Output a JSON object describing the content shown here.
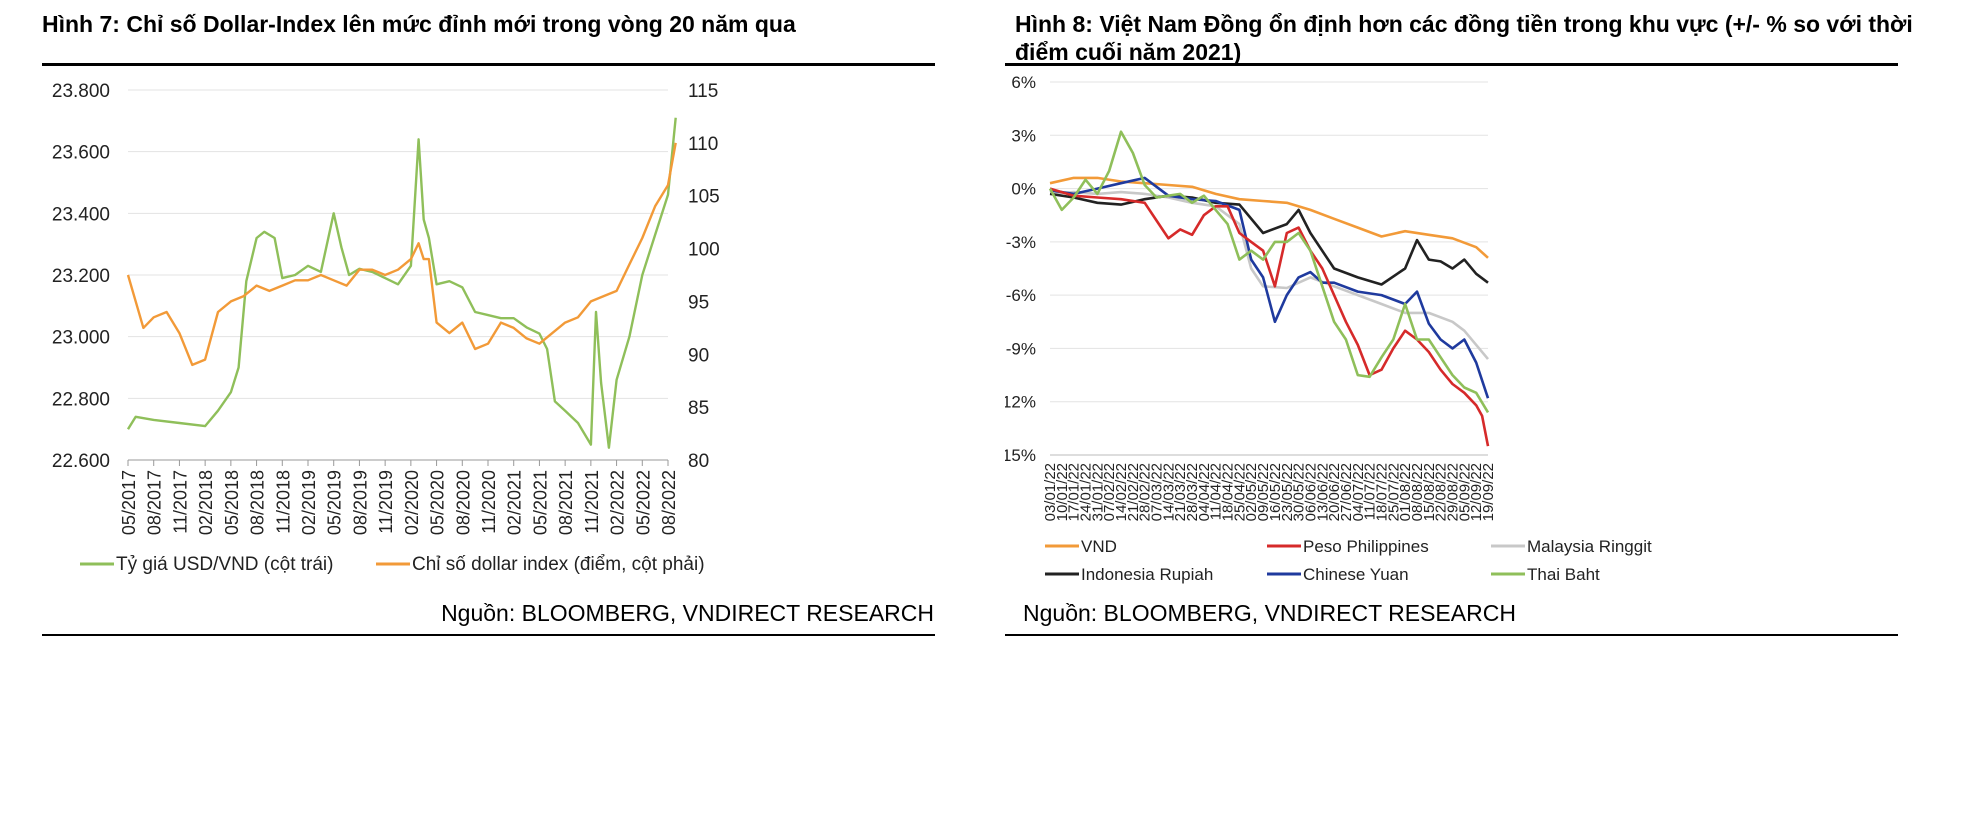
{
  "figure1": {
    "title": "Hình 7: Chỉ số Dollar-Index lên mức đỉnh mới trong vòng 20 năm qua",
    "source": "Nguồn: BLOOMBERG, VNDIRECT RESEARCH",
    "chart_data": {
      "type": "line",
      "title": "Hình 7: Chỉ số Dollar-Index lên mức đỉnh mới trong vòng 20 năm qua",
      "x_tick_labels": [
        "05/2017",
        "08/2017",
        "11/2017",
        "02/2018",
        "05/2018",
        "08/2018",
        "11/2018",
        "02/2019",
        "05/2019",
        "08/2019",
        "11/2019",
        "02/2020",
        "05/2020",
        "08/2020",
        "11/2020",
        "02/2021",
        "05/2021",
        "08/2021",
        "11/2021",
        "02/2022",
        "05/2022",
        "08/2022"
      ],
      "left_axis": {
        "ylim": [
          22600,
          23800
        ],
        "ticks": [
          "23.800",
          "23.600",
          "23.400",
          "23.200",
          "23.000",
          "22.800",
          "22.600"
        ]
      },
      "right_axis": {
        "ylim": [
          80,
          115
        ],
        "ticks": [
          "115",
          "110",
          "105",
          "100",
          "95",
          "90",
          "85",
          "80"
        ]
      },
      "series": [
        {
          "name": "Tỷ giá USD/VND (cột trái)",
          "axis": "left",
          "color": "#8fbf5a",
          "x": [
            0,
            0.3,
            1,
            2,
            3,
            3.5,
            4,
            4.3,
            4.6,
            5,
            5.3,
            5.7,
            6,
            6.5,
            7,
            7.5,
            8,
            8.3,
            8.6,
            9,
            9.5,
            10,
            10.5,
            11,
            11.3,
            11.5,
            11.7,
            12,
            12.5,
            13,
            13.5,
            14,
            14.5,
            15,
            15.5,
            16,
            16.3,
            16.6,
            17,
            17.5,
            18,
            18.2,
            18.4,
            18.7,
            19,
            19.5,
            20,
            20.5,
            21,
            21.3
          ],
          "values": [
            22700,
            22740,
            22730,
            22720,
            22710,
            22760,
            22820,
            22900,
            23180,
            23320,
            23340,
            23320,
            23190,
            23200,
            23230,
            23210,
            23400,
            23290,
            23200,
            23220,
            23210,
            23190,
            23170,
            23230,
            23640,
            23380,
            23320,
            23170,
            23180,
            23160,
            23080,
            23070,
            23060,
            23060,
            23030,
            23010,
            22960,
            22790,
            22760,
            22720,
            22650,
            23080,
            22850,
            22640,
            22860,
            23000,
            23200,
            23330,
            23460,
            23710
          ]
        },
        {
          "name": "Chỉ số dollar index (điểm, cột phải)",
          "axis": "right",
          "color": "#f29a38",
          "x": [
            0,
            0.3,
            0.6,
            1,
            1.5,
            2,
            2.5,
            3,
            3.5,
            4,
            4.5,
            5,
            5.5,
            6,
            6.5,
            7,
            7.5,
            8,
            8.5,
            9,
            9.5,
            10,
            10.5,
            11,
            11.3,
            11.5,
            11.7,
            12,
            12.5,
            13,
            13.5,
            14,
            14.5,
            15,
            15.5,
            16,
            16.5,
            17,
            17.5,
            18,
            18.5,
            19,
            19.5,
            20,
            20.5,
            21,
            21.3
          ],
          "values": [
            97.5,
            95,
            92.5,
            93.5,
            94,
            92,
            89,
            89.5,
            94,
            95,
            95.5,
            96.5,
            96,
            96.5,
            97,
            97,
            97.5,
            97,
            96.5,
            98,
            98,
            97.5,
            98,
            99,
            100.5,
            99,
            99,
            93,
            92,
            93,
            90.5,
            91,
            93,
            92.5,
            91.5,
            91,
            92,
            93,
            93.5,
            95,
            95.5,
            96,
            98.5,
            101,
            104,
            106,
            110
          ]
        }
      ],
      "legend": [
        "Tỷ giá USD/VND (cột trái)",
        "Chỉ số dollar index (điểm, cột phải)"
      ],
      "legend_position": "bottom"
    }
  },
  "figure2": {
    "title": "Hình 8: Việt Nam Đồng ổn định hơn các đồng tiền trong khu vực (+/- % so với thời điểm cuối năm 2021)",
    "source": "Nguồn: BLOOMBERG, VNDIRECT RESEARCH",
    "chart_data": {
      "type": "line",
      "title": "Hình 8: Việt Nam Đồng ổn định hơn các đồng tiền trong khu vực (+/- % so với thời điểm cuối năm 2021)",
      "x_tick_labels": [
        "03/01/22",
        "10/01/22",
        "17/01/22",
        "24/01/22",
        "31/01/22",
        "07/02/22",
        "14/02/22",
        "21/02/22",
        "28/02/22",
        "07/03/22",
        "14/03/22",
        "21/03/22",
        "28/03/22",
        "04/04/22",
        "11/04/22",
        "18/04/22",
        "25/04/22",
        "02/05/22",
        "09/05/22",
        "16/05/22",
        "23/05/22",
        "30/05/22",
        "06/06/22",
        "13/06/22",
        "20/06/22",
        "27/06/22",
        "04/07/22",
        "11/07/22",
        "18/07/22",
        "25/07/22",
        "01/08/22",
        "08/08/22",
        "15/08/22",
        "22/08/22",
        "29/08/22",
        "05/09/22",
        "12/09/22",
        "19/09/22"
      ],
      "ylim": [
        -15,
        6
      ],
      "y_tick_labels": [
        "6%",
        "3%",
        "0%",
        "-3%",
        "-6%",
        "-9%",
        "-12%",
        "-15%"
      ],
      "series": [
        {
          "name": "VND",
          "color": "#f29a38",
          "x": [
            0,
            2,
            4,
            6,
            8,
            10,
            12,
            14,
            16,
            18,
            20,
            22,
            24,
            26,
            28,
            30,
            32,
            34,
            36,
            37
          ],
          "values": [
            0.3,
            0.6,
            0.6,
            0.4,
            0.3,
            0.2,
            0.1,
            -0.3,
            -0.6,
            -0.7,
            -0.8,
            -1.2,
            -1.7,
            -2.2,
            -2.7,
            -2.4,
            -2.6,
            -2.8,
            -3.3,
            -3.9
          ]
        },
        {
          "name": "Peso Philippines",
          "color": "#d62a2a",
          "x": [
            0,
            2,
            4,
            6,
            8,
            9,
            10,
            11,
            12,
            13,
            14,
            15,
            16,
            17,
            18,
            19,
            20,
            21,
            22,
            23,
            24,
            25,
            26,
            27,
            28,
            29,
            30,
            31,
            32,
            33,
            34,
            35,
            36,
            36.5,
            37
          ],
          "values": [
            0,
            -0.4,
            -0.5,
            -0.6,
            -0.8,
            -1.8,
            -2.8,
            -2.3,
            -2.6,
            -1.5,
            -1.0,
            -1.0,
            -2.5,
            -3.0,
            -3.5,
            -5.5,
            -2.5,
            -2.2,
            -3.5,
            -4.5,
            -6.0,
            -7.5,
            -8.8,
            -10.5,
            -10.2,
            -9.0,
            -8.0,
            -8.5,
            -9.2,
            -10.2,
            -11.0,
            -11.5,
            -12.2,
            -12.8,
            -14.5
          ]
        },
        {
          "name": "Malaysia Ringgit",
          "color": "#c8c8c8",
          "x": [
            0,
            2,
            4,
            6,
            8,
            10,
            12,
            14,
            16,
            17,
            18,
            20,
            22,
            24,
            26,
            28,
            30,
            32,
            34,
            35,
            36,
            37
          ],
          "values": [
            -0.3,
            -0.2,
            -0.3,
            -0.2,
            -0.3,
            -0.5,
            -0.8,
            -1.0,
            -2.0,
            -4.5,
            -5.5,
            -5.6,
            -5.0,
            -5.5,
            -6.0,
            -6.5,
            -7.0,
            -7.0,
            -7.5,
            -8.0,
            -8.8,
            -9.6
          ]
        },
        {
          "name": "Indonesia Rupiah",
          "color": "#222222",
          "x": [
            0,
            2,
            4,
            6,
            8,
            10,
            12,
            14,
            16,
            18,
            20,
            21,
            22,
            24,
            26,
            28,
            30,
            31,
            32,
            33,
            34,
            35,
            36,
            37
          ],
          "values": [
            -0.3,
            -0.5,
            -0.8,
            -0.9,
            -0.6,
            -0.4,
            -0.5,
            -0.8,
            -0.9,
            -2.5,
            -2.0,
            -1.2,
            -2.5,
            -4.5,
            -5.0,
            -5.4,
            -4.5,
            -2.9,
            -4.0,
            -4.1,
            -4.5,
            -4.0,
            -4.8,
            -5.3
          ]
        },
        {
          "name": "Chinese Yuan",
          "color": "#1f3a9e",
          "x": [
            0,
            2,
            4,
            6,
            8,
            10,
            12,
            14,
            16,
            17,
            18,
            19,
            20,
            21,
            22,
            23,
            24,
            26,
            28,
            30,
            31,
            32,
            33,
            34,
            35,
            36,
            37
          ],
          "values": [
            -0.1,
            -0.3,
            0.0,
            0.3,
            0.6,
            -0.4,
            -0.6,
            -0.7,
            -1.2,
            -4.0,
            -5.0,
            -7.5,
            -6.0,
            -5.0,
            -4.7,
            -5.3,
            -5.3,
            -5.8,
            -6.0,
            -6.5,
            -5.8,
            -7.6,
            -8.5,
            -9.0,
            -8.5,
            -9.8,
            -11.8
          ]
        },
        {
          "name": "Thai Baht",
          "color": "#8fbf5a",
          "x": [
            0,
            1,
            2,
            3,
            4,
            5,
            6,
            7,
            8,
            9,
            10,
            11,
            12,
            13,
            14,
            15,
            16,
            17,
            18,
            19,
            20,
            21,
            22,
            23,
            24,
            25,
            26,
            27,
            28,
            29,
            30,
            31,
            32,
            33,
            34,
            35,
            36,
            37
          ],
          "values": [
            0,
            -1.2,
            -0.5,
            0.5,
            -0.3,
            1.0,
            3.2,
            2.0,
            0.2,
            -0.5,
            -0.4,
            -0.3,
            -0.8,
            -0.4,
            -1.2,
            -2.0,
            -4.0,
            -3.5,
            -4.0,
            -3.0,
            -3.0,
            -2.5,
            -3.5,
            -5.5,
            -7.5,
            -8.5,
            -10.5,
            -10.6,
            -9.5,
            -8.5,
            -6.5,
            -8.5,
            -8.5,
            -9.5,
            -10.5,
            -11.2,
            -11.5,
            -12.6
          ]
        }
      ],
      "legend": [
        "VND",
        "Peso Philippines",
        "Malaysia Ringgit",
        "Indonesia Rupiah",
        "Chinese Yuan",
        "Thai Baht"
      ],
      "legend_position": "bottom"
    }
  }
}
